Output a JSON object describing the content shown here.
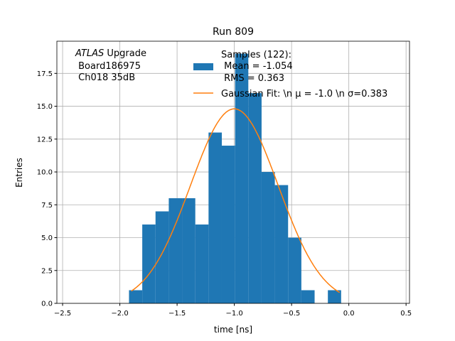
{
  "chart_data": {
    "type": "bar",
    "title": "Run 809",
    "xlabel": "time [ns]",
    "ylabel": "Entries",
    "xlim": [
      -2.55,
      0.53
    ],
    "ylim": [
      0,
      19.95
    ],
    "grid": true,
    "xticks": [
      -2.5,
      -2.0,
      -1.5,
      -1.0,
      -0.5,
      0.0,
      0.5
    ],
    "xtick_labels": [
      "−2.5",
      "−2.0",
      "−1.5",
      "−1.0",
      "−0.5",
      "0.0",
      "0.5"
    ],
    "yticks": [
      0,
      2.5,
      5,
      7.5,
      10,
      12.5,
      15,
      17.5
    ],
    "ytick_labels": [
      "0.0",
      "2.5",
      "5.0",
      "7.5",
      "10.0",
      "12.5",
      "15.0",
      "17.5"
    ],
    "bin_start": -1.92,
    "bin_width": 0.1158,
    "values": [
      1,
      6,
      7,
      8,
      8,
      6,
      13,
      12,
      19,
      16,
      10,
      9,
      5,
      1,
      0,
      1
    ],
    "bar_color": "#1f77b4",
    "fit": {
      "mu": -1.0,
      "sigma": 0.383,
      "amplitude": 14.8,
      "range": [
        -1.9,
        -0.08
      ],
      "color": "#ff7f0e"
    },
    "legend_placement": "top-center",
    "legend": {
      "hist": [
        "Samples (122):",
        " Mean = -1.054",
        " RMS = 0.363"
      ],
      "fit": "Gaussian Fit: \\n μ = -1.0 \\n σ=0.383"
    },
    "annotation": {
      "atlas": "ATLAS",
      "upgrade": " Upgrade",
      "line2": " Board186975",
      "line3": " Ch018 35dB"
    }
  }
}
